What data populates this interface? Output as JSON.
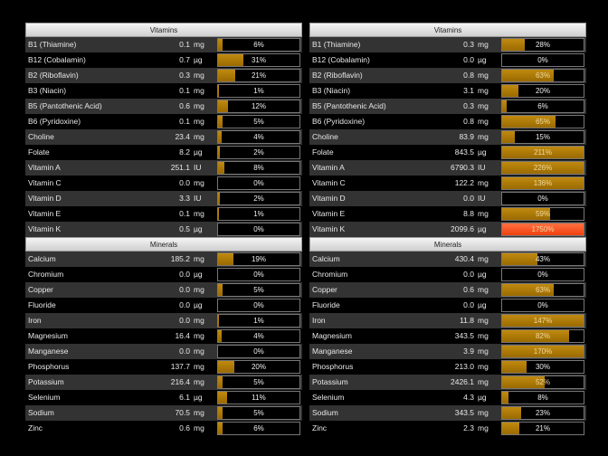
{
  "colors": {
    "fill": "#b07c00",
    "overflow": "#ff5a1f"
  },
  "panels": [
    {
      "sections": [
        {
          "title": "Vitamins",
          "rows": [
            {
              "name": "B1 (Thiamine)",
              "value": "0.1",
              "unit": "mg",
              "pct": 6
            },
            {
              "name": "B12 (Cobalamin)",
              "value": "0.7",
              "unit": "µg",
              "pct": 31
            },
            {
              "name": "B2 (Riboflavin)",
              "value": "0.3",
              "unit": "mg",
              "pct": 21
            },
            {
              "name": "B3 (Niacin)",
              "value": "0.1",
              "unit": "mg",
              "pct": 1
            },
            {
              "name": "B5 (Pantothenic Acid)",
              "value": "0.6",
              "unit": "mg",
              "pct": 12
            },
            {
              "name": "B6 (Pyridoxine)",
              "value": "0.1",
              "unit": "mg",
              "pct": 5
            },
            {
              "name": "Choline",
              "value": "23.4",
              "unit": "mg",
              "pct": 4
            },
            {
              "name": "Folate",
              "value": "8.2",
              "unit": "µg",
              "pct": 2
            },
            {
              "name": "Vitamin A",
              "value": "251.1",
              "unit": "IU",
              "pct": 8
            },
            {
              "name": "Vitamin C",
              "value": "0.0",
              "unit": "mg",
              "pct": 0
            },
            {
              "name": "Vitamin D",
              "value": "3.3",
              "unit": "IU",
              "pct": 2
            },
            {
              "name": "Vitamin E",
              "value": "0.1",
              "unit": "mg",
              "pct": 1
            },
            {
              "name": "Vitamin K",
              "value": "0.5",
              "unit": "µg",
              "pct": 0
            }
          ]
        },
        {
          "title": "Minerals",
          "rows": [
            {
              "name": "Calcium",
              "value": "185.2",
              "unit": "mg",
              "pct": 19
            },
            {
              "name": "Chromium",
              "value": "0.0",
              "unit": "µg",
              "pct": 0
            },
            {
              "name": "Copper",
              "value": "0.0",
              "unit": "mg",
              "pct": 5
            },
            {
              "name": "Fluoride",
              "value": "0.0",
              "unit": "µg",
              "pct": 0
            },
            {
              "name": "Iron",
              "value": "0.0",
              "unit": "mg",
              "pct": 1
            },
            {
              "name": "Magnesium",
              "value": "16.4",
              "unit": "mg",
              "pct": 4
            },
            {
              "name": "Manganese",
              "value": "0.0",
              "unit": "mg",
              "pct": 0
            },
            {
              "name": "Phosphorus",
              "value": "137.7",
              "unit": "mg",
              "pct": 20
            },
            {
              "name": "Potassium",
              "value": "216.4",
              "unit": "mg",
              "pct": 5
            },
            {
              "name": "Selenium",
              "value": "6.1",
              "unit": "µg",
              "pct": 11
            },
            {
              "name": "Sodium",
              "value": "70.5",
              "unit": "mg",
              "pct": 5
            },
            {
              "name": "Zinc",
              "value": "0.6",
              "unit": "mg",
              "pct": 6
            }
          ]
        }
      ]
    },
    {
      "sections": [
        {
          "title": "Vitamins",
          "rows": [
            {
              "name": "B1 (Thiamine)",
              "value": "0.3",
              "unit": "mg",
              "pct": 28
            },
            {
              "name": "B12 (Cobalamin)",
              "value": "0.0",
              "unit": "µg",
              "pct": 0
            },
            {
              "name": "B2 (Riboflavin)",
              "value": "0.8",
              "unit": "mg",
              "pct": 63
            },
            {
              "name": "B3 (Niacin)",
              "value": "3.1",
              "unit": "mg",
              "pct": 20
            },
            {
              "name": "B5 (Pantothenic Acid)",
              "value": "0.3",
              "unit": "mg",
              "pct": 6
            },
            {
              "name": "B6 (Pyridoxine)",
              "value": "0.8",
              "unit": "mg",
              "pct": 65
            },
            {
              "name": "Choline",
              "value": "83.9",
              "unit": "mg",
              "pct": 15
            },
            {
              "name": "Folate",
              "value": "843.5",
              "unit": "µg",
              "pct": 211
            },
            {
              "name": "Vitamin A",
              "value": "6790.3",
              "unit": "IU",
              "pct": 226
            },
            {
              "name": "Vitamin C",
              "value": "122.2",
              "unit": "mg",
              "pct": 136
            },
            {
              "name": "Vitamin D",
              "value": "0.0",
              "unit": "IU",
              "pct": 0
            },
            {
              "name": "Vitamin E",
              "value": "8.8",
              "unit": "mg",
              "pct": 59
            },
            {
              "name": "Vitamin K",
              "value": "2099.6",
              "unit": "µg",
              "pct": 1750
            }
          ]
        },
        {
          "title": "Minerals",
          "rows": [
            {
              "name": "Calcium",
              "value": "430.4",
              "unit": "mg",
              "pct": 43
            },
            {
              "name": "Chromium",
              "value": "0.0",
              "unit": "µg",
              "pct": 0
            },
            {
              "name": "Copper",
              "value": "0.6",
              "unit": "mg",
              "pct": 63
            },
            {
              "name": "Fluoride",
              "value": "0.0",
              "unit": "µg",
              "pct": 0
            },
            {
              "name": "Iron",
              "value": "11.8",
              "unit": "mg",
              "pct": 147
            },
            {
              "name": "Magnesium",
              "value": "343.5",
              "unit": "mg",
              "pct": 82
            },
            {
              "name": "Manganese",
              "value": "3.9",
              "unit": "mg",
              "pct": 170
            },
            {
              "name": "Phosphorus",
              "value": "213.0",
              "unit": "mg",
              "pct": 30
            },
            {
              "name": "Potassium",
              "value": "2426.1",
              "unit": "mg",
              "pct": 52
            },
            {
              "name": "Selenium",
              "value": "4.3",
              "unit": "µg",
              "pct": 8
            },
            {
              "name": "Sodium",
              "value": "343.5",
              "unit": "mg",
              "pct": 23
            },
            {
              "name": "Zinc",
              "value": "2.3",
              "unit": "mg",
              "pct": 21
            }
          ]
        }
      ]
    }
  ]
}
